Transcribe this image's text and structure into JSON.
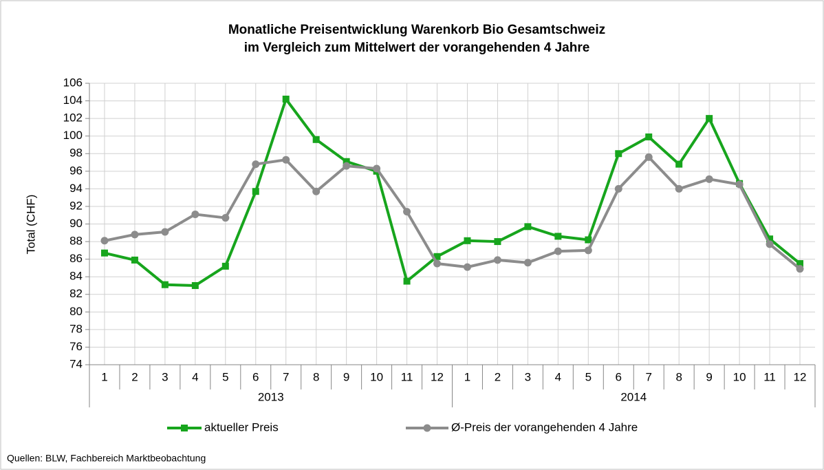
{
  "chart_data": {
    "type": "line",
    "title": [
      "Monatliche Preisentwicklung Warenkorb Bio Gesamtschweiz",
      "im Vergleich zum Mittelwert der vorangehenden 4 Jahre"
    ],
    "y_label": "Total (CHF)",
    "categories": [
      "1",
      "2",
      "3",
      "4",
      "5",
      "6",
      "7",
      "8",
      "9",
      "10",
      "11",
      "12",
      "1",
      "2",
      "3",
      "4",
      "5",
      "6",
      "7",
      "8",
      "9",
      "10",
      "11",
      "12"
    ],
    "groups": [
      "2013",
      "2014"
    ],
    "series": [
      {
        "name": "aktueller Preis",
        "color": "#17a51d",
        "marker": "square",
        "values": [
          86.7,
          85.9,
          83.1,
          83.0,
          85.2,
          93.7,
          104.2,
          99.6,
          97.1,
          96.0,
          83.5,
          86.3,
          88.1,
          88.0,
          89.7,
          88.6,
          88.2,
          98.0,
          99.9,
          96.8,
          102.0,
          94.6,
          88.3,
          85.5
        ]
      },
      {
        "name": "Ø-Preis der vorangehenden 4 Jahre",
        "color": "#8c8c8c",
        "marker": "circle",
        "values": [
          88.1,
          88.8,
          89.1,
          91.1,
          90.7,
          96.8,
          97.3,
          93.7,
          96.6,
          96.3,
          91.4,
          85.5,
          85.1,
          85.9,
          85.6,
          86.9,
          87.0,
          94.0,
          97.6,
          94.0,
          95.1,
          94.5,
          87.7,
          84.9
        ]
      }
    ],
    "ylim": [
      74,
      106
    ],
    "yticks": [
      74,
      76,
      78,
      80,
      82,
      84,
      86,
      88,
      90,
      92,
      94,
      96,
      98,
      100,
      102,
      104,
      106
    ],
    "grid": true,
    "legend": "bottom",
    "source": "Quellen: BLW, Fachbereich Marktbeobachtung"
  }
}
